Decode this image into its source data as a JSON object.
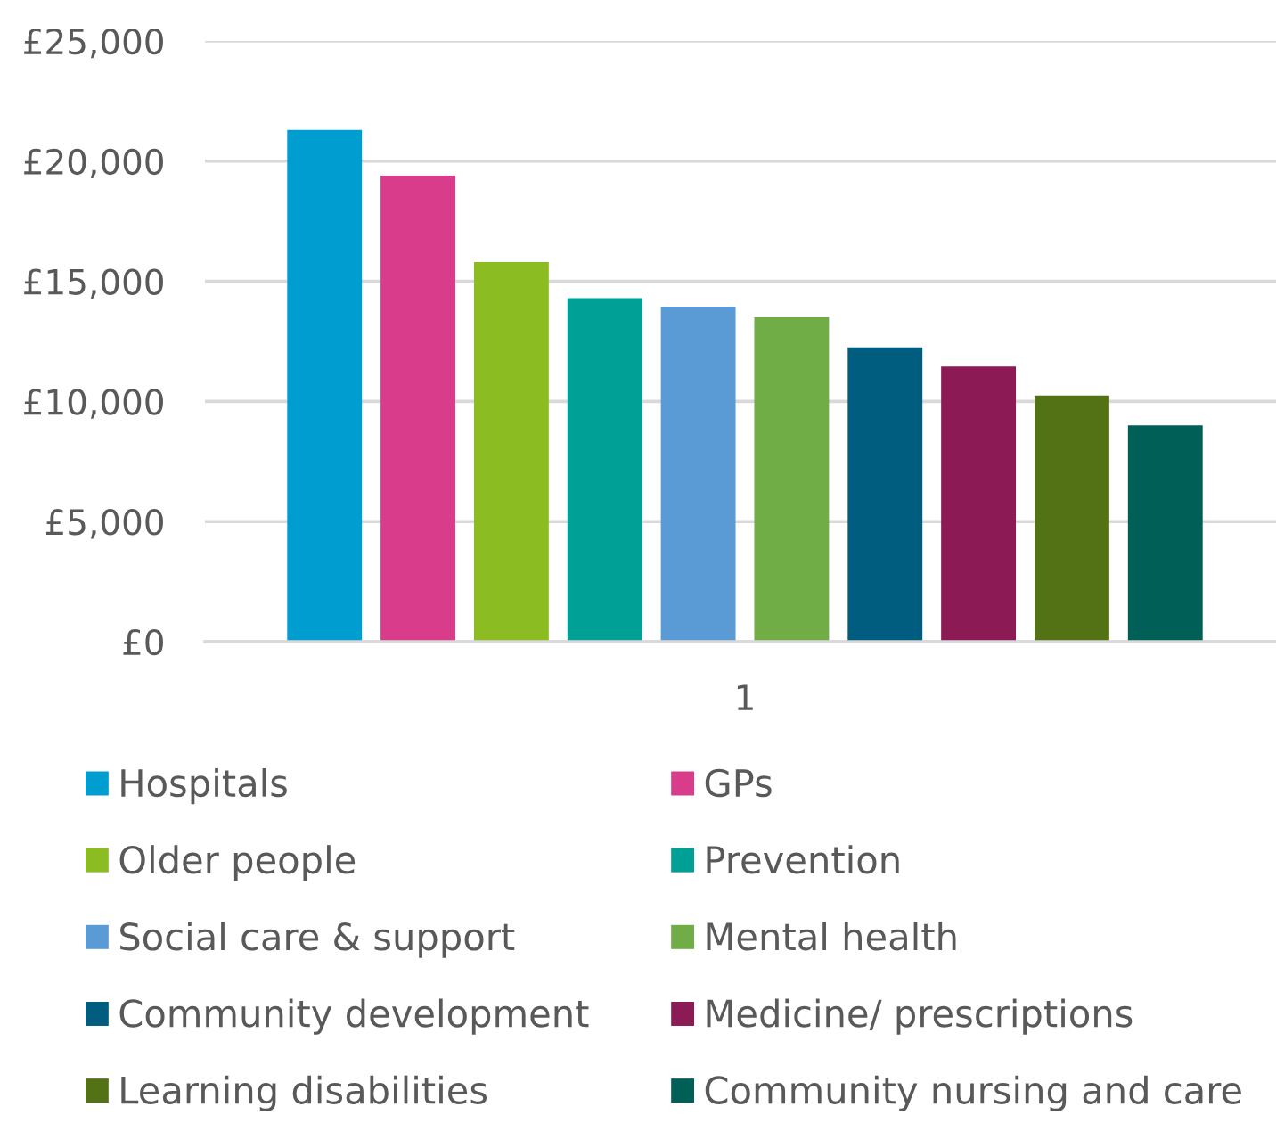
{
  "chart_data": {
    "type": "bar",
    "categories": [
      "1"
    ],
    "series": [
      {
        "name": "Hospitals",
        "color": "#009dd1",
        "values": [
          21300
        ]
      },
      {
        "name": "GPs",
        "color": "#da3c8c",
        "values": [
          19400
        ]
      },
      {
        "name": "Older people",
        "color": "#8bbd23",
        "values": [
          15800
        ]
      },
      {
        "name": "Prevention",
        "color": "#00a096",
        "values": [
          14300
        ]
      },
      {
        "name": "Social care & support",
        "color": "#5b9bd5",
        "values": [
          13950
        ]
      },
      {
        "name": "Mental health",
        "color": "#70ad47",
        "values": [
          13500
        ]
      },
      {
        "name": "Community development",
        "color": "#005d7f",
        "values": [
          12250
        ]
      },
      {
        "name": "Medicine/ prescriptions",
        "color": "#8c1a55",
        "values": [
          11450
        ]
      },
      {
        "name": "Learning disabilities",
        "color": "#537216",
        "values": [
          10250
        ]
      },
      {
        "name": "Community nursing and care",
        "color": "#005f57",
        "values": [
          9000
        ]
      }
    ],
    "ylim": [
      0,
      25000
    ],
    "yticks": [
      {
        "value": 0,
        "label": "£0"
      },
      {
        "value": 5000,
        "label": "£5,000"
      },
      {
        "value": 10000,
        "label": "£10,000"
      },
      {
        "value": 15000,
        "label": "£15,000"
      },
      {
        "value": 20000,
        "label": "£20,000"
      },
      {
        "value": 25000,
        "label": "£25,000"
      }
    ],
    "grid": "y",
    "legend": "bottom"
  }
}
